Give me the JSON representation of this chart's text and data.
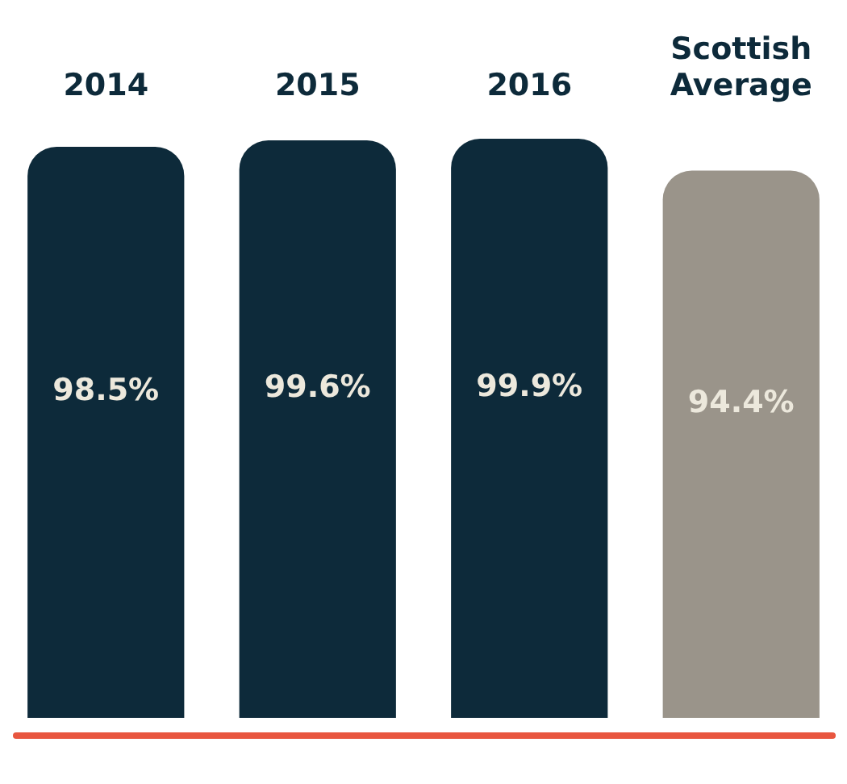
{
  "chart_data": {
    "type": "bar",
    "categories": [
      "2014",
      "2015",
      "2016",
      "Scottish Average"
    ],
    "values": [
      98.5,
      99.6,
      99.9,
      94.4
    ],
    "colors": [
      "#0d2a3a",
      "#0d2a3a",
      "#0d2a3a",
      "#9a948a"
    ],
    "value_labels": [
      "98.5%",
      "99.6%",
      "99.9%",
      "94.4%"
    ],
    "tick_labels": "x",
    "grid": false,
    "legend": false
  }
}
